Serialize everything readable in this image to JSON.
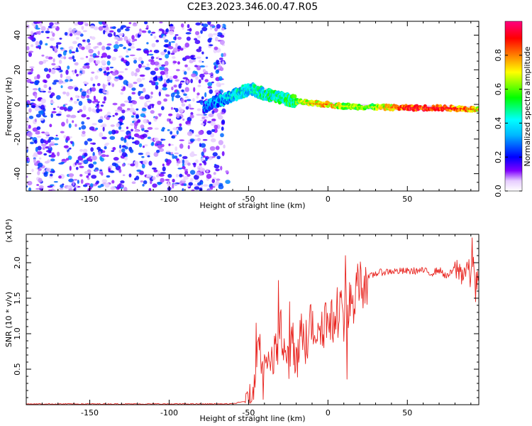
{
  "title": "C2E3.2023.346.00.47.R05",
  "chart_data": [
    {
      "type": "heatmap",
      "title": "C2E3.2023.346.00.47.R05",
      "xlabel": "Height of straight line (km)",
      "ylabel": "Frequency (Hz)",
      "xlim": [
        -190,
        95
      ],
      "ylim": [
        -50,
        48
      ],
      "x_ticks": [
        -150,
        -100,
        -50,
        0,
        50
      ],
      "y_ticks": [
        -40,
        -20,
        0,
        20,
        40
      ],
      "colorbar": {
        "label": "Normalized spectral amplitude",
        "range": [
          0,
          1
        ],
        "ticks": [
          0.0,
          0.2,
          0.4,
          0.6,
          0.8
        ],
        "colors": [
          "#ffffff",
          "#8000ff",
          "#0000ff",
          "#00ffff",
          "#00ff00",
          "#ffff00",
          "#ff8000",
          "#ff0000",
          "#ff0080"
        ]
      },
      "noise_region": {
        "x": [
          -190,
          -65
        ],
        "y": [
          -50,
          48
        ],
        "amplitude": [
          0.05,
          0.3
        ]
      },
      "ridge": [
        {
          "x": -78,
          "y": -2,
          "a": 0.25
        },
        {
          "x": -70,
          "y": 2,
          "a": 0.3
        },
        {
          "x": -62,
          "y": 4,
          "a": 0.35
        },
        {
          "x": -55,
          "y": 7,
          "a": 0.4
        },
        {
          "x": -48,
          "y": 9,
          "a": 0.38
        },
        {
          "x": -40,
          "y": 6,
          "a": 0.45
        },
        {
          "x": -30,
          "y": 4,
          "a": 0.45
        },
        {
          "x": -22,
          "y": 2,
          "a": 0.5
        },
        {
          "x": -10,
          "y": 0.5,
          "a": 0.7
        },
        {
          "x": 0,
          "y": 0,
          "a": 0.75
        },
        {
          "x": 10,
          "y": -1,
          "a": 0.6
        },
        {
          "x": 25,
          "y": -1.5,
          "a": 0.55
        },
        {
          "x": 50,
          "y": -2,
          "a": 0.85
        },
        {
          "x": 70,
          "y": -2,
          "a": 0.85
        },
        {
          "x": 85,
          "y": -2.5,
          "a": 0.8
        },
        {
          "x": 95,
          "y": -3,
          "a": 0.7
        }
      ]
    },
    {
      "type": "line",
      "xlabel": "Height of straight line (km)",
      "ylabel": "SNR (10 * v/v)",
      "y_multiplier": "(x10⁴)",
      "xlim": [
        -190,
        95
      ],
      "ylim": [
        0,
        2.4
      ],
      "x_ticks": [
        -150,
        -100,
        -50,
        0,
        50
      ],
      "y_ticks": [
        0.5,
        1.0,
        1.5,
        2.0
      ],
      "series": [
        {
          "color": "#e8231e",
          "x": [
            -190,
            -140,
            -100,
            -60,
            -52,
            -48,
            -46,
            -44,
            -42,
            -40,
            -37,
            -35,
            -32,
            -30,
            -28,
            -25,
            -22,
            -20,
            -18,
            -15,
            -12,
            -10,
            -8,
            -5,
            -3,
            0,
            2,
            5,
            8,
            10,
            11,
            12,
            14,
            17,
            20,
            25,
            30,
            35,
            40,
            50,
            60,
            65,
            70,
            75,
            80,
            85,
            88,
            90,
            92,
            93,
            95
          ],
          "y": [
            0.01,
            0.01,
            0.01,
            0.01,
            0.05,
            0.2,
            0.5,
            0.95,
            0.7,
            0.6,
            0.75,
            0.55,
            0.8,
            1.1,
            0.7,
            0.65,
            0.8,
            0.55,
            0.85,
            1.1,
            0.9,
            1.2,
            1.05,
            1.2,
            1.15,
            1.25,
            1.1,
            1.3,
            1.35,
            1.25,
            1.5,
            1.1,
            1.45,
            1.55,
            1.7,
            1.78,
            1.85,
            1.87,
            1.88,
            1.88,
            1.89,
            1.85,
            1.9,
            1.8,
            1.92,
            1.85,
            1.95,
            1.75,
            2.05,
            1.7,
            1.8
          ]
        }
      ],
      "spikes": [
        {
          "x": -45,
          "y": 1.15
        },
        {
          "x": -31,
          "y": 1.75
        },
        {
          "x": -24,
          "y": 1.45
        },
        {
          "x": -11,
          "y": 1.4
        },
        {
          "x": 11,
          "y": 2.1
        },
        {
          "x": 12,
          "y": 0.36
        },
        {
          "x": 91,
          "y": 2.35
        },
        {
          "x": 93,
          "y": 1.45
        }
      ]
    }
  ]
}
